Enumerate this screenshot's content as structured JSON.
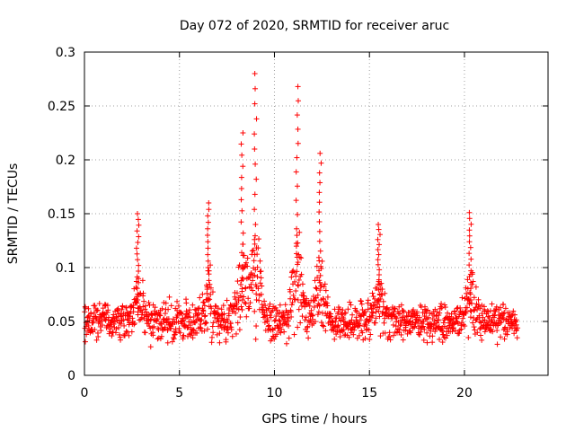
{
  "chart_data": {
    "type": "scatter",
    "title": "Day 072 of 2020, SRMTID for receiver aruc",
    "xlabel": "GPS time / hours",
    "ylabel": "SRMTID / TECUs",
    "xlim": [
      0,
      24.4
    ],
    "ylim": [
      0,
      0.3
    ],
    "xticks": [
      0,
      5,
      10,
      15,
      20
    ],
    "xtick_labels": [
      "0",
      "5",
      "10",
      "15",
      "20"
    ],
    "yticks": [
      0,
      0.05,
      0.1,
      0.15,
      0.2,
      0.25,
      0.3
    ],
    "ytick_labels": [
      "0",
      "0.05",
      "0.1",
      "0.15",
      "0.2",
      "0.25",
      "0.3"
    ],
    "grid": true,
    "marker": "+",
    "color": "#ff0000",
    "series": [
      {
        "name": "aruc",
        "x_range": [
          0,
          22.8
        ],
        "point_count": 1400,
        "background_level": 0.05,
        "peaks": [
          {
            "x": 2.8,
            "max": 0.15
          },
          {
            "x": 6.5,
            "max": 0.16
          },
          {
            "x": 8.3,
            "max": 0.225
          },
          {
            "x": 9.0,
            "max": 0.28
          },
          {
            "x": 11.2,
            "max": 0.268
          },
          {
            "x": 12.4,
            "max": 0.206
          },
          {
            "x": 15.5,
            "max": 0.14
          },
          {
            "x": 20.3,
            "max": 0.151
          }
        ]
      }
    ]
  }
}
